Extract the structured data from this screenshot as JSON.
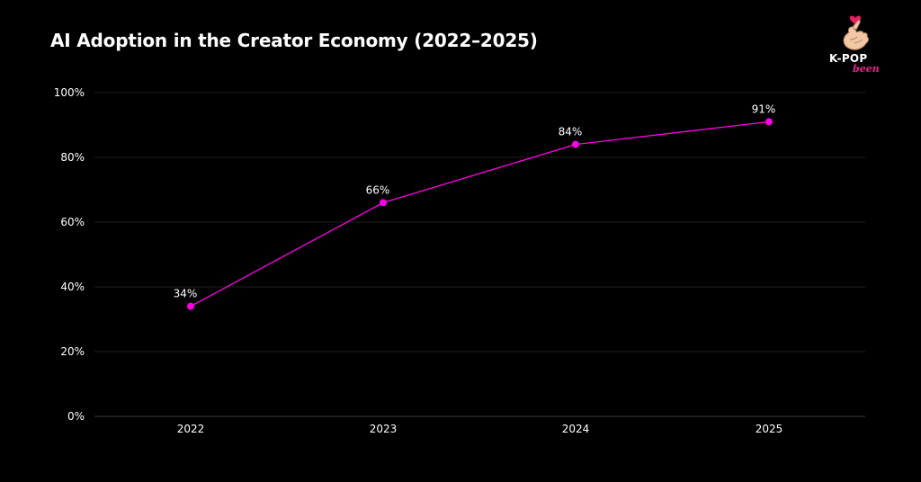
{
  "logo": {
    "text_main": "K-POP",
    "text_sub": "been",
    "accent_color": "#e91e8c"
  },
  "chart_data": {
    "type": "line",
    "title": "AI Adoption in the Creator Economy (2022–2025)",
    "categories": [
      "2022",
      "2023",
      "2024",
      "2025"
    ],
    "series": [
      {
        "values": [
          34,
          66,
          84,
          91
        ],
        "data_labels": [
          "34%",
          "66%",
          "84%",
          "91%"
        ],
        "color": "#ff00e6"
      }
    ],
    "ylim": [
      0,
      100
    ],
    "yticks": [
      0,
      20,
      40,
      60,
      80,
      100
    ],
    "ytick_labels": [
      "0%",
      "20%",
      "40%",
      "60%",
      "80%",
      "100%"
    ],
    "grid": true,
    "background": "#000000",
    "grid_color": "#1f1f1f",
    "axis_color": "#3a3a3a",
    "legend": "none"
  }
}
